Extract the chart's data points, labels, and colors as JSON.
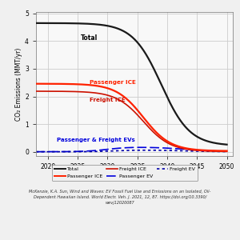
{
  "ylabel": "CO₂ Emissions (MMT/yr)",
  "xlim": [
    2018,
    2051
  ],
  "ylim": [
    -0.15,
    5.05
  ],
  "yticks": [
    0.0,
    1.0,
    2.0,
    3.0,
    4.0,
    5.0
  ],
  "xticks": [
    2020,
    2025,
    2030,
    2035,
    2040,
    2045,
    2050
  ],
  "caption": "McKenzie, K.A. Sun, Wind and Waves: EV Fossil Fuel Use and Emissions on an Isolated, Oil-\nDependent Hawaiian Island. World Electr. Veh. J. 2021, 12, 87. https://doi.org/10.3390/\nwevj12020087",
  "labels": {
    "total": "Total",
    "passenger_ice": "Passenger ICE",
    "freight_ice": "Freight ICE",
    "ev_annotation": "Passenger & Freight EVs",
    "passenger_ev_legend": "Passenger EV",
    "freight_ev_legend": "Freight EV"
  },
  "colors": {
    "total": "#1a1a1a",
    "passenger_ice": "#ff2200",
    "freight_ice": "#cc1100",
    "passenger_ev": "#0000dd",
    "freight_ev": "#0000aa"
  },
  "background": "#f0f0f0",
  "plot_bg": "#f8f8f8"
}
